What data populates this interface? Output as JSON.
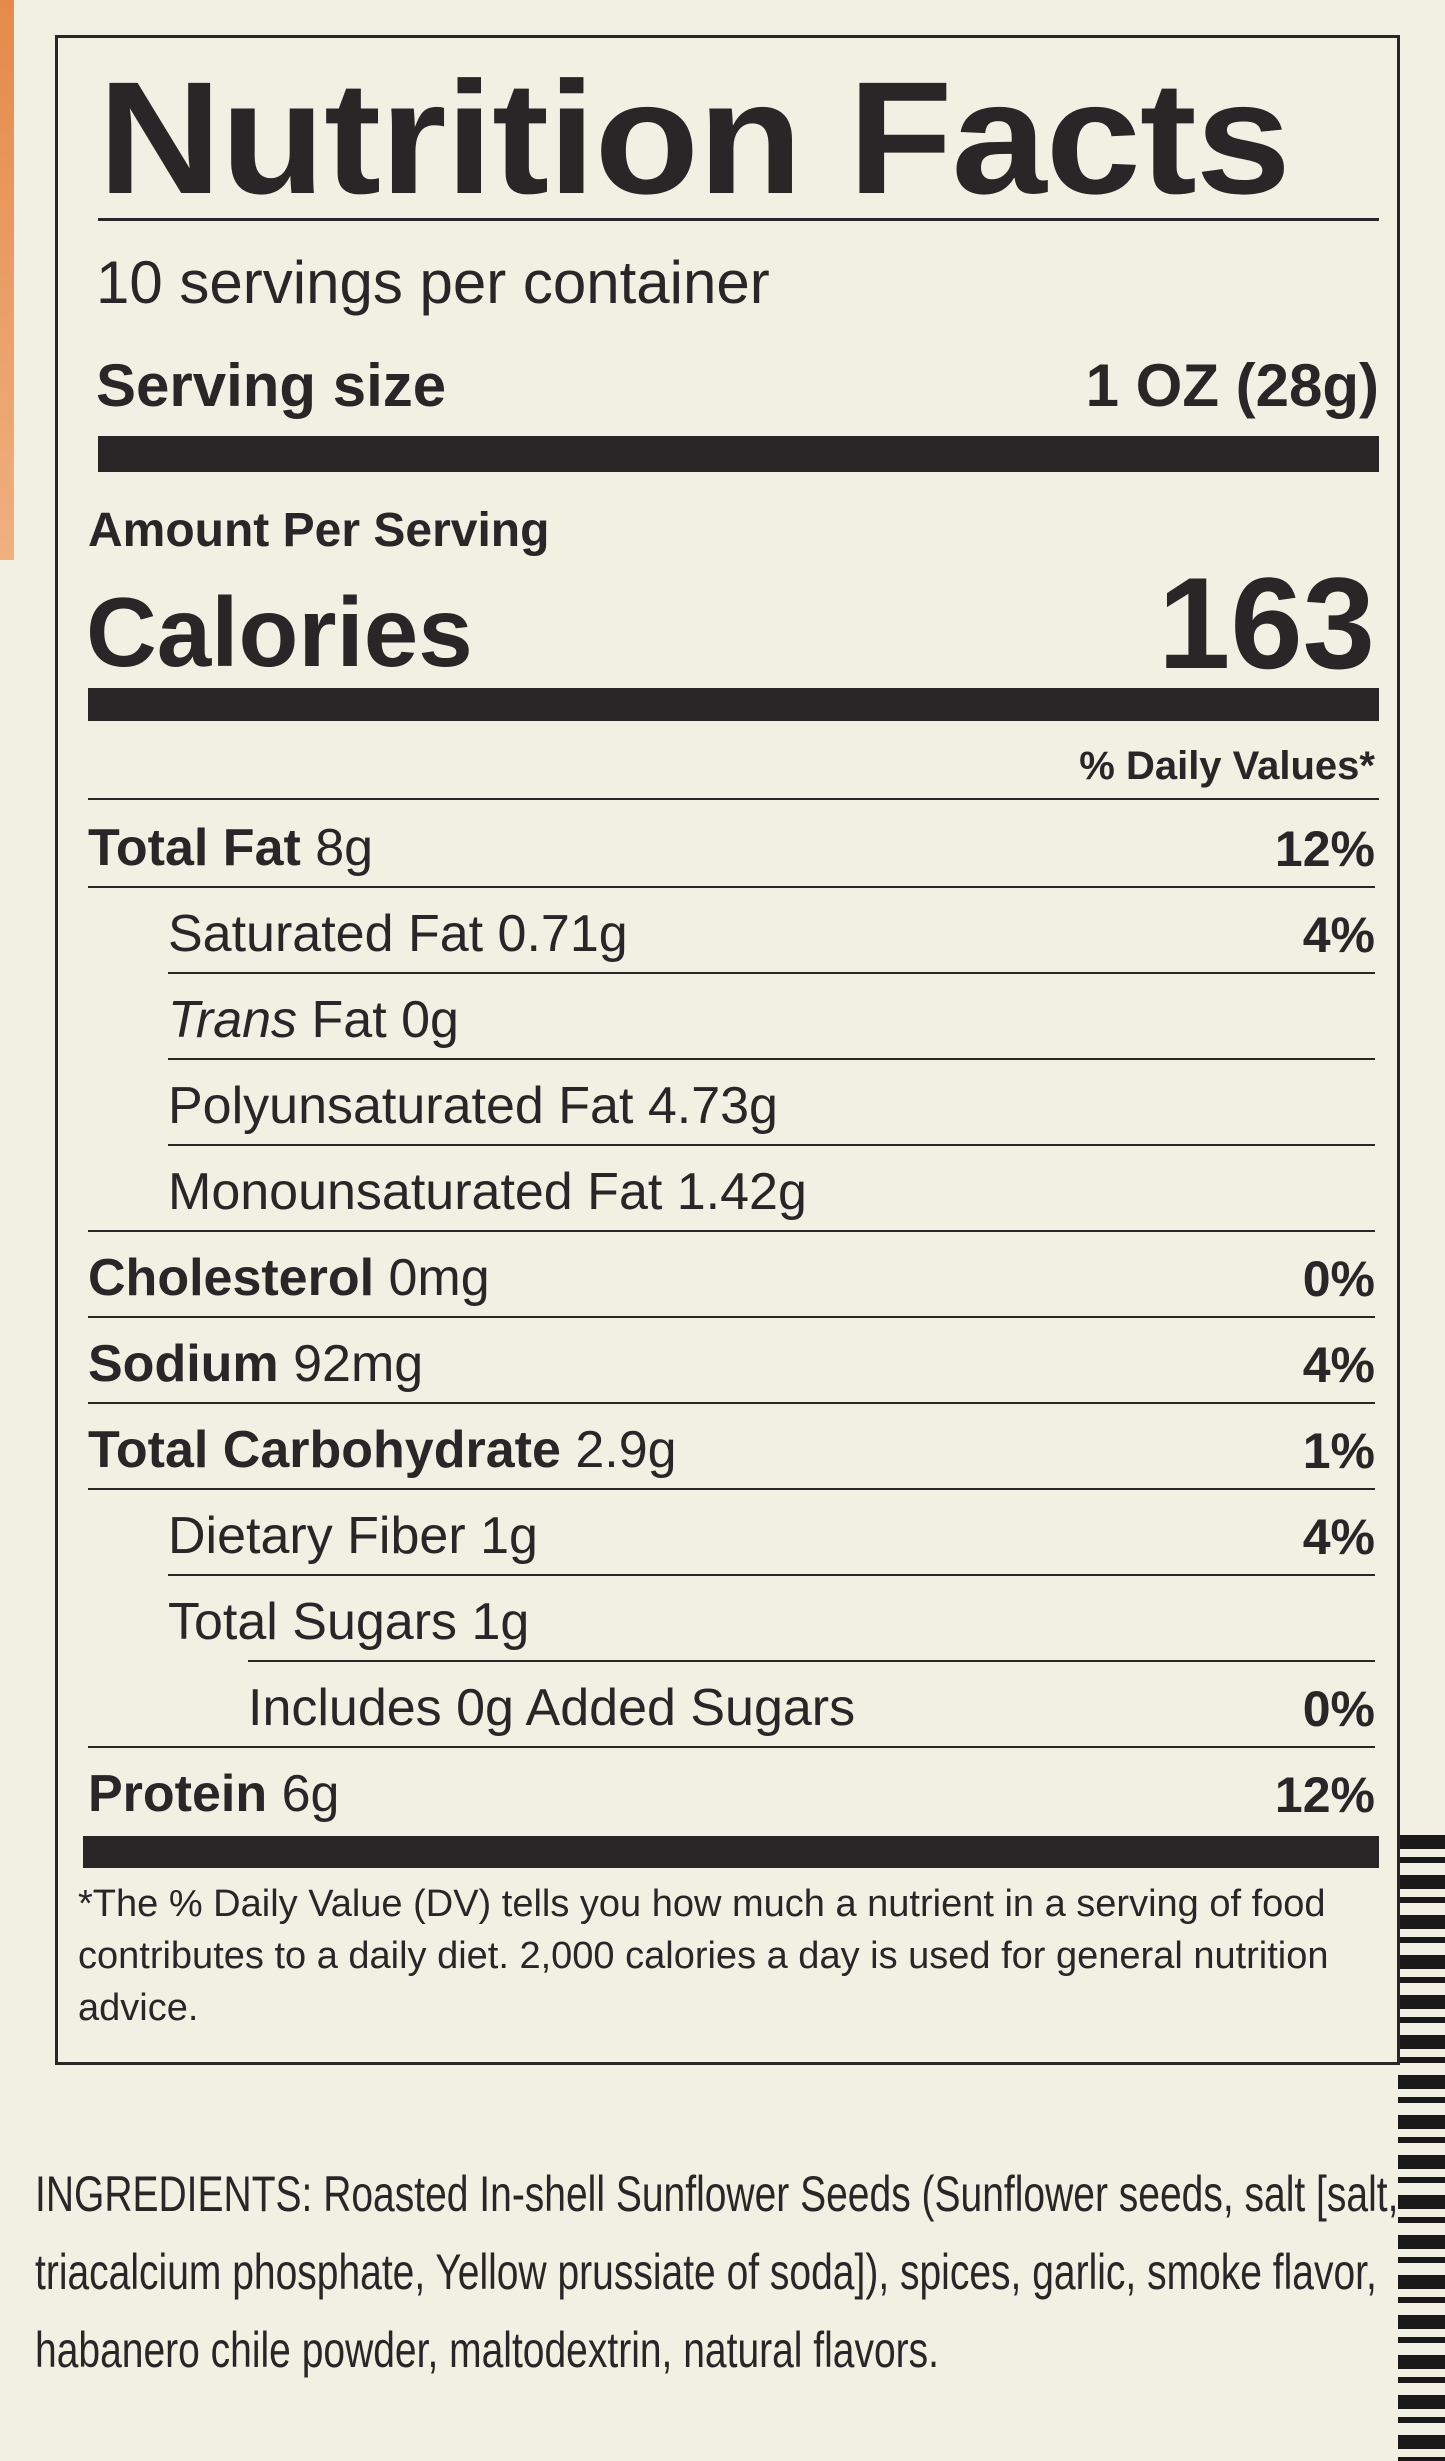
{
  "label": {
    "title": "Nutrition Facts",
    "servings_per_container": "10 servings per container",
    "serving_size_label": "Serving size",
    "serving_size_value": "1 OZ (28g)",
    "amount_per_serving": "Amount Per Serving",
    "calories_label": "Calories",
    "calories_value": "163",
    "daily_values_header": "% Daily Values*",
    "rows": [
      {
        "bold": "Total Fat",
        "name": "",
        "amount": " 8g",
        "dv": "12%"
      },
      {
        "bold": "",
        "name": "Saturated Fat",
        "amount": " 0.71g",
        "dv": "4%"
      },
      {
        "bold": "",
        "italic": "Trans",
        "name": " Fat",
        "amount": " 0g",
        "dv": ""
      },
      {
        "bold": "",
        "name": "Polyunsaturated Fat",
        "amount": " 4.73g",
        "dv": ""
      },
      {
        "bold": "",
        "name": "Monounsaturated Fat",
        "amount": " 1.42g",
        "dv": ""
      },
      {
        "bold": "Cholesterol",
        "name": "",
        "amount": " 0mg",
        "dv": "0%"
      },
      {
        "bold": "Sodium",
        "name": "",
        "amount": " 92mg",
        "dv": "4%"
      },
      {
        "bold": "Total Carbohydrate",
        "name": "",
        "amount": " 2.9g",
        "dv": "1%"
      },
      {
        "bold": "",
        "name": "Dietary Fiber",
        "amount": " 1g",
        "dv": "4%"
      },
      {
        "bold": "",
        "name": "Total Sugars",
        "amount": " 1g",
        "dv": ""
      },
      {
        "bold": "",
        "name": "Includes 0g Added Sugars",
        "amount": "",
        "dv": "0%"
      },
      {
        "bold": "Protein",
        "name": "",
        "amount": " 6g",
        "dv": "12%"
      }
    ],
    "footnote": "*The % Daily Value (DV) tells you how much a nutrient in a serving of food contributes to a daily diet. 2,000 calories a day is used for general nutrition advice."
  },
  "ingredients": "INGREDIENTS: Roasted In-shell Sunflower Seeds (Sunflower seeds, salt [salt, triacalcium phosphate, Yellow prussiate of soda]), spices, garlic, smoke flavor, habanero chile powder, maltodextrin, natural flavors."
}
